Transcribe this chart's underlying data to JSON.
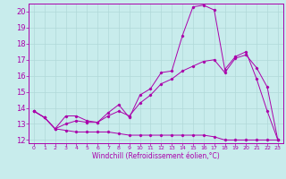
{
  "xlabel": "Windchill (Refroidissement éolien,°C)",
  "background_color": "#c8ecec",
  "grid_color": "#b0d8d8",
  "line_color": "#aa00aa",
  "xlim": [
    -0.5,
    23.5
  ],
  "ylim": [
    11.8,
    20.5
  ],
  "yticks": [
    12,
    13,
    14,
    15,
    16,
    17,
    18,
    19,
    20
  ],
  "xticks": [
    0,
    1,
    2,
    3,
    4,
    5,
    6,
    7,
    8,
    9,
    10,
    11,
    12,
    13,
    14,
    15,
    16,
    17,
    18,
    19,
    20,
    21,
    22,
    23
  ],
  "series1_x": [
    0,
    1,
    2,
    3,
    4,
    5,
    6,
    7,
    8,
    9,
    10,
    11,
    12,
    13,
    14,
    15,
    16,
    17,
    18,
    19,
    20,
    21,
    22,
    23
  ],
  "series1_y": [
    13.8,
    13.4,
    12.7,
    13.5,
    13.5,
    13.2,
    13.1,
    13.7,
    14.2,
    13.4,
    14.8,
    15.2,
    16.2,
    16.3,
    18.5,
    20.3,
    20.4,
    20.1,
    16.4,
    17.2,
    17.5,
    15.8,
    13.8,
    12.0
  ],
  "series2_x": [
    0,
    1,
    2,
    3,
    4,
    5,
    6,
    7,
    8,
    9,
    10,
    11,
    12,
    13,
    14,
    15,
    16,
    17,
    18,
    19,
    20,
    21,
    22,
    23
  ],
  "series2_y": [
    13.8,
    13.4,
    12.7,
    12.6,
    12.5,
    12.5,
    12.5,
    12.5,
    12.4,
    12.3,
    12.3,
    12.3,
    12.3,
    12.3,
    12.3,
    12.3,
    12.3,
    12.2,
    12.0,
    12.0,
    12.0,
    12.0,
    12.0,
    12.0
  ],
  "series3_x": [
    0,
    1,
    2,
    3,
    4,
    5,
    6,
    7,
    8,
    9,
    10,
    11,
    12,
    13,
    14,
    15,
    16,
    17,
    18,
    19,
    20,
    21,
    22,
    23
  ],
  "series3_y": [
    13.8,
    13.4,
    12.7,
    13.0,
    13.2,
    13.1,
    13.1,
    13.5,
    13.8,
    13.5,
    14.3,
    14.8,
    15.5,
    15.8,
    16.3,
    16.6,
    16.9,
    17.0,
    16.2,
    17.1,
    17.3,
    16.5,
    15.3,
    12.0
  ],
  "xlabel_fontsize": 5.5,
  "ytick_fontsize": 6,
  "xtick_fontsize": 4.5
}
